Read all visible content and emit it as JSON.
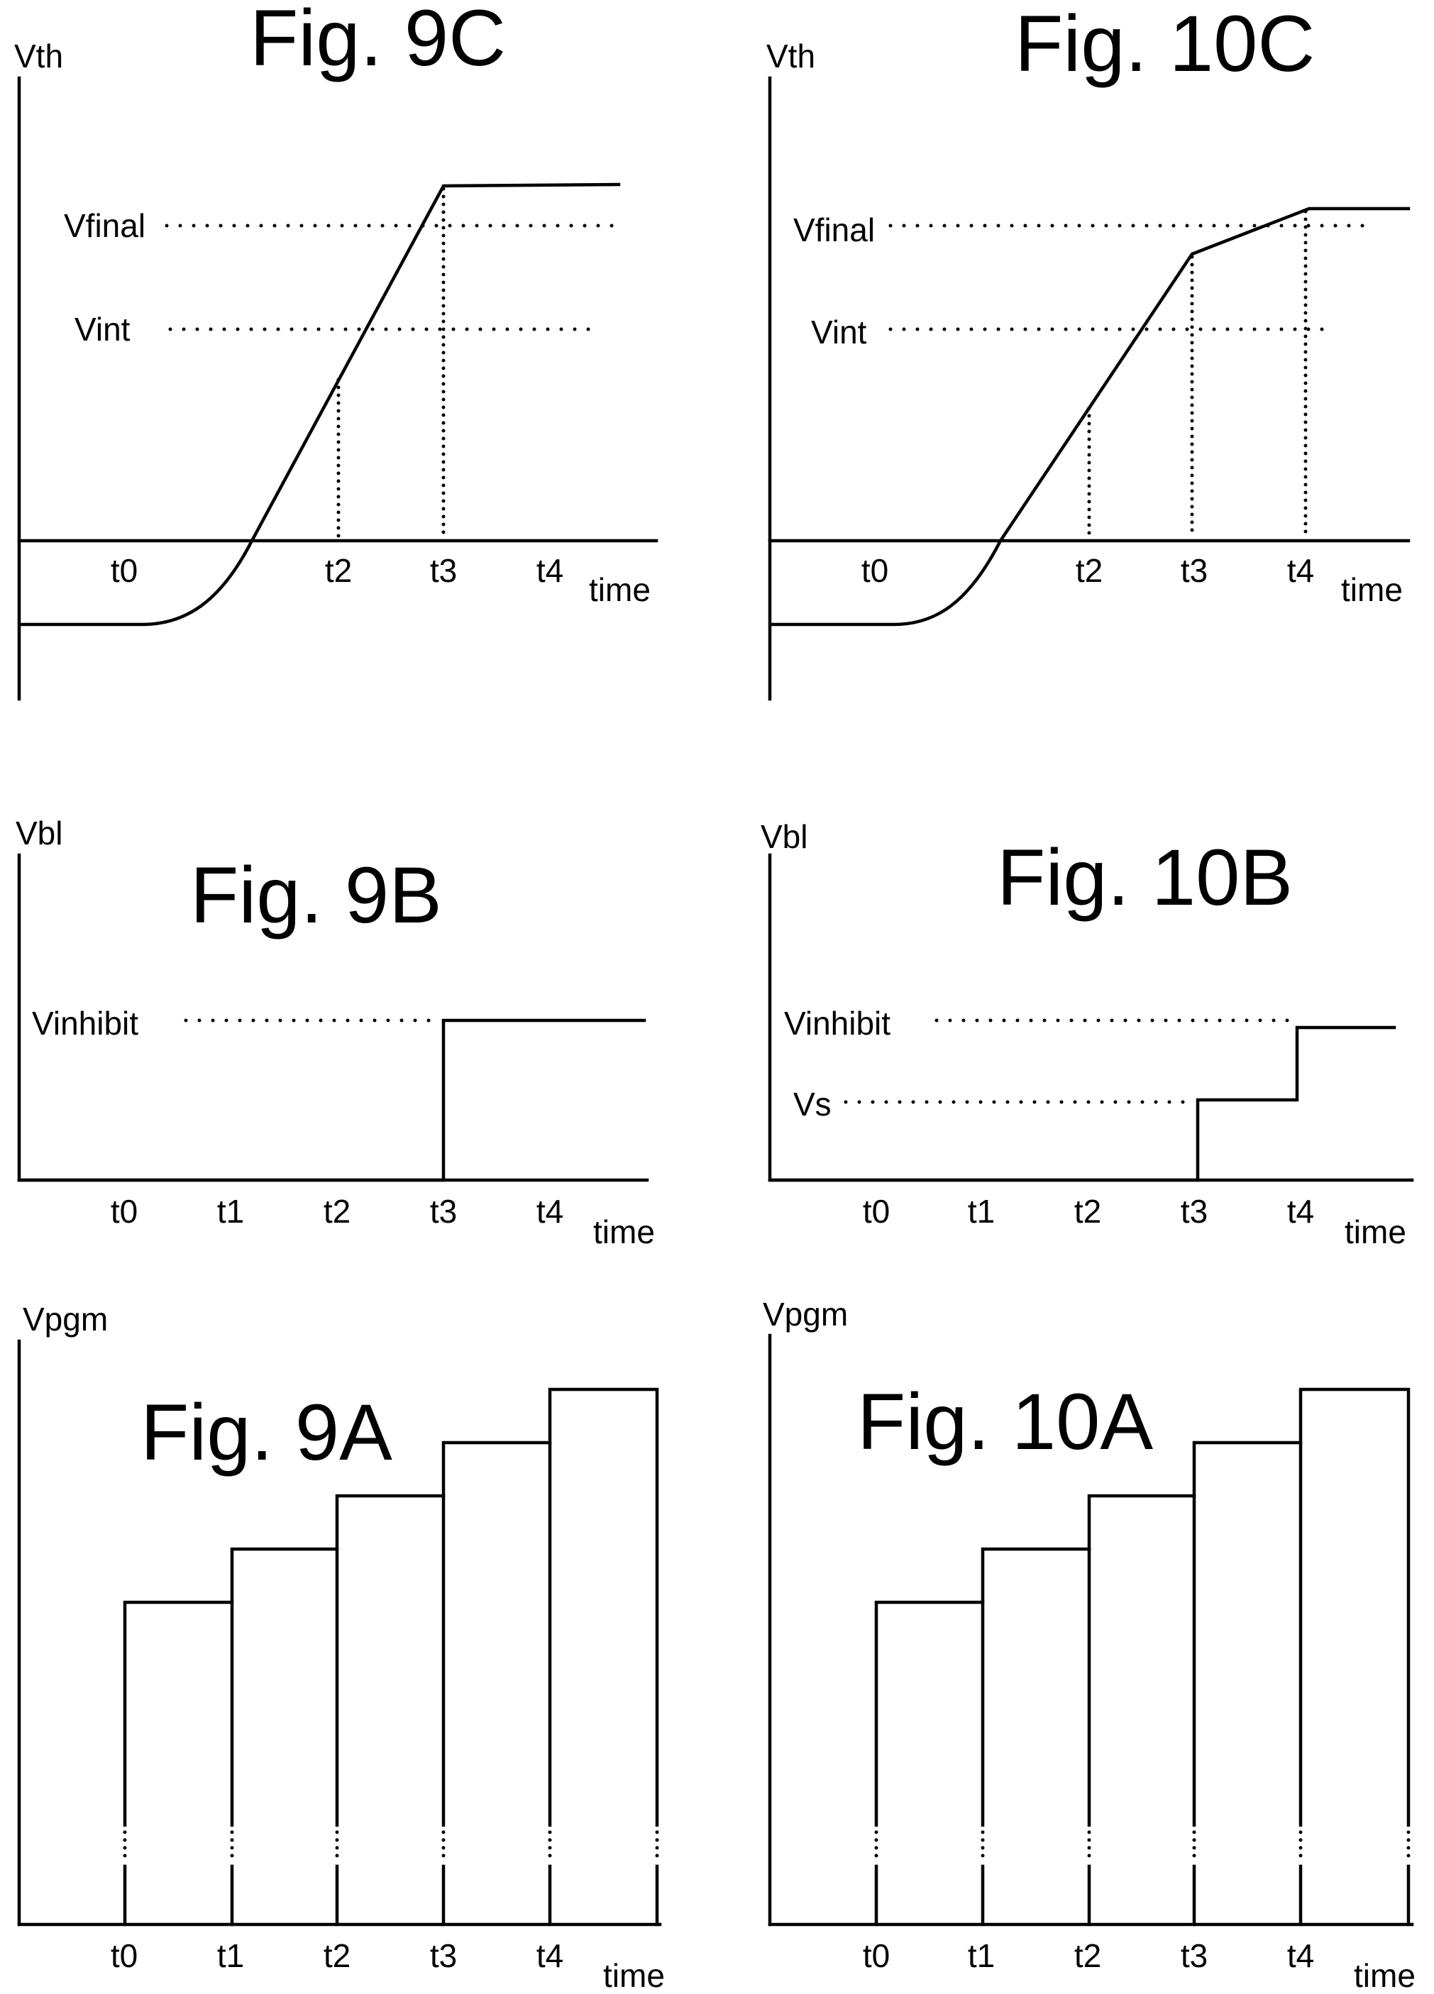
{
  "figures": {
    "fig9c": {
      "title": "Fig. 9C",
      "y_axis_label": "Vth",
      "x_axis_label": "time",
      "levels": [
        "Vfinal",
        "Vint"
      ],
      "ticks": [
        "t0",
        "t2",
        "t3",
        "t4"
      ]
    },
    "fig10c": {
      "title": "Fig. 10C",
      "y_axis_label": "Vth",
      "x_axis_label": "time",
      "levels": [
        "Vfinal",
        "Vint"
      ],
      "ticks": [
        "t0",
        "t2",
        "t3",
        "t4"
      ]
    },
    "fig9b": {
      "title": "Fig. 9B",
      "y_axis_label": "Vbl",
      "x_axis_label": "time",
      "levels": [
        "Vinhibit"
      ],
      "ticks": [
        "t0",
        "t1",
        "t2",
        "t3",
        "t4"
      ]
    },
    "fig10b": {
      "title": "Fig. 10B",
      "y_axis_label": "Vbl",
      "x_axis_label": "time",
      "levels": [
        "Vinhibit",
        "Vs"
      ],
      "ticks": [
        "t0",
        "t1",
        "t2",
        "t3",
        "t4"
      ]
    },
    "fig9a": {
      "title": "Fig. 9A",
      "y_axis_label": "Vpgm",
      "x_axis_label": "time",
      "ticks": [
        "t0",
        "t1",
        "t2",
        "t3",
        "t4"
      ]
    },
    "fig10a": {
      "title": "Fig. 10A",
      "y_axis_label": "Vpgm",
      "x_axis_label": "time",
      "ticks": [
        "t0",
        "t1",
        "t2",
        "t3",
        "t4"
      ]
    }
  }
}
